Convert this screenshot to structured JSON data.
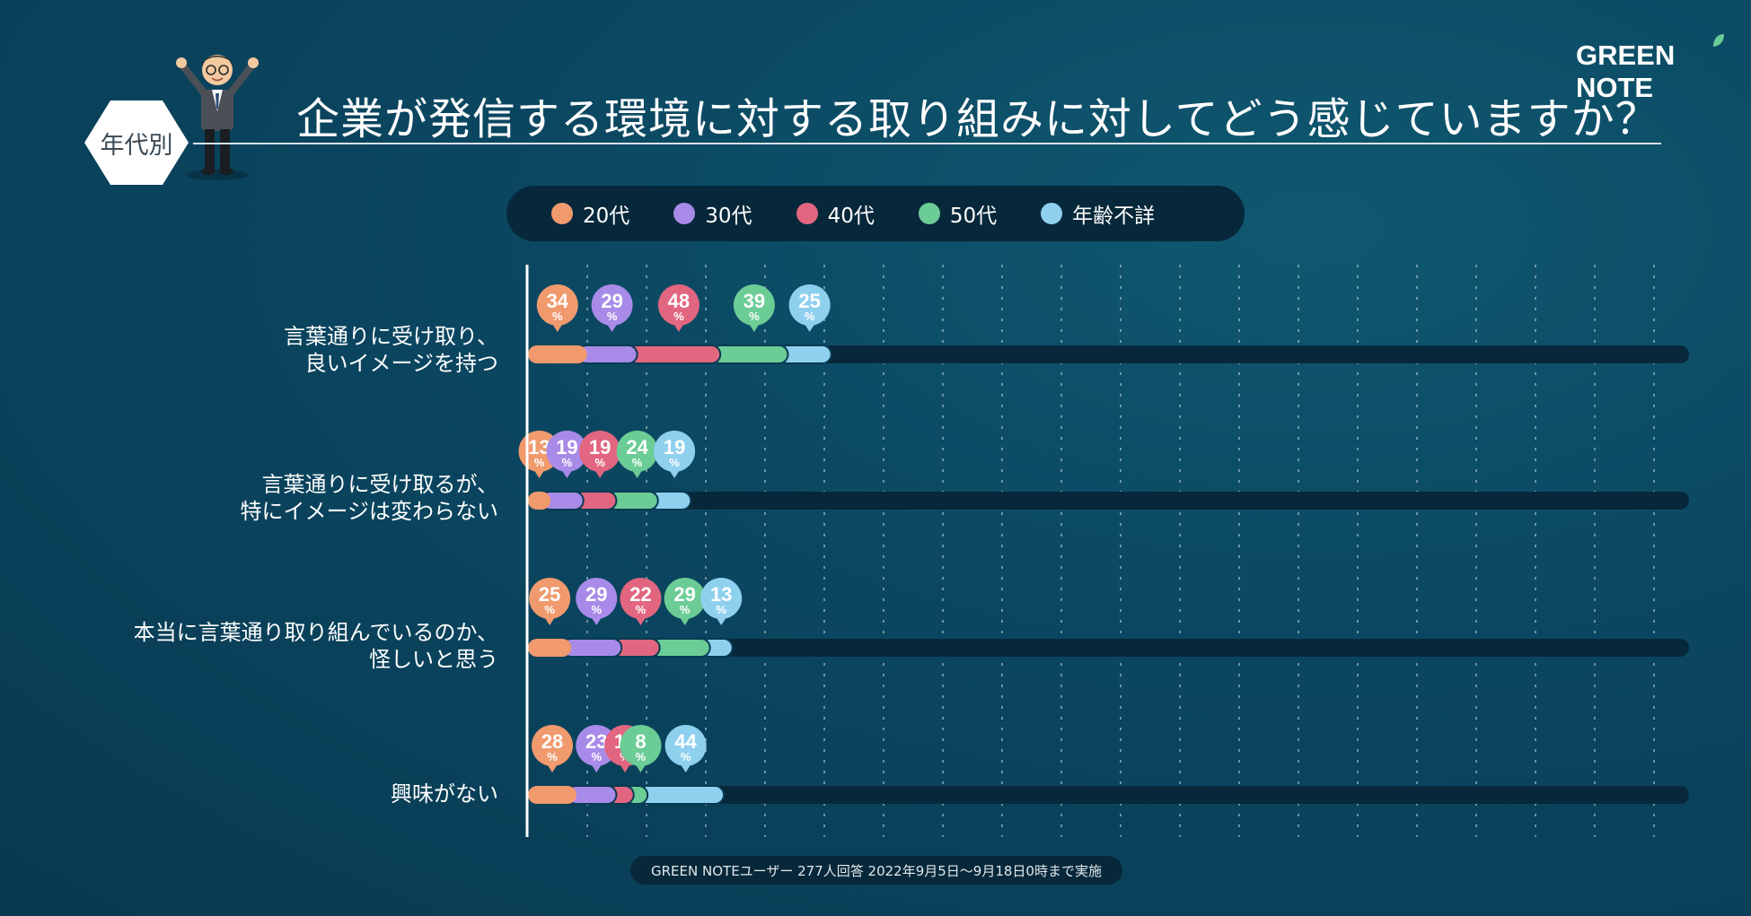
{
  "brand": "GREEN NOTE",
  "badge": "年代別",
  "title": "企業が発信する環境に対する取り組みに対してどう感じていますか？",
  "footer": "GREEN NOTEユーザー 277人回答 2022年9月5日〜9月18日0時まで実施",
  "colors": {
    "20代": "#f09a6e",
    "30代": "#a88be8",
    "40代": "#e26680",
    "50代": "#6ccc96",
    "年齢不詳": "#8fd0ef",
    "track": "#07283a"
  },
  "chart_data": {
    "type": "bar",
    "orientation": "horizontal-stacked",
    "title": "企業が発信する環境に対する取り組みに対してどう感じていますか？",
    "unit": "%",
    "categories": [
      "言葉通りに受け取り、\n良いイメージを持つ",
      "言葉通りに受け取るが、\n特にイメージは変わらない",
      "本当に言葉通り取り組んでいるのか、\n怪しいと思う",
      "興味がない"
    ],
    "series": [
      {
        "name": "20代",
        "values": [
          34,
          13,
          25,
          28
        ]
      },
      {
        "name": "30代",
        "values": [
          29,
          19,
          29,
          23
        ]
      },
      {
        "name": "40代",
        "values": [
          48,
          19,
          22,
          10
        ]
      },
      {
        "name": "50代",
        "values": [
          39,
          24,
          29,
          8
        ]
      },
      {
        "name": "年齢不詳",
        "values": [
          25,
          19,
          13,
          44
        ]
      }
    ],
    "xlim": [
      0,
      196
    ]
  }
}
